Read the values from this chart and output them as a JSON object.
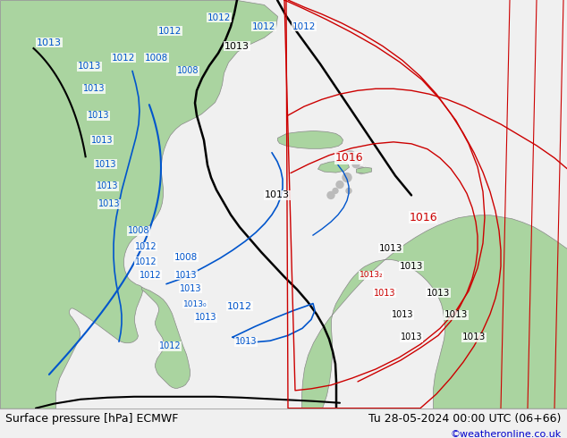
{
  "fig_width": 6.34,
  "fig_height": 4.9,
  "dpi": 100,
  "bg_color": "#f0f0f0",
  "land_color": "#aad4a0",
  "land_edge_color": "#888888",
  "ocean_color": "#f0f0f0",
  "bottom_bar_color": "#ffffff",
  "bottom_bar_height": 0.068,
  "title_left": "Surface pressure [hPa] ECMWF",
  "title_right": "Tu 28-05-2024 00:00 UTC (06+66)",
  "credit": "©weatheronline.co.uk",
  "title_fontsize": 9,
  "credit_fontsize": 8,
  "credit_color": "#0000cc",
  "title_color": "#000000",
  "black": "#000000",
  "blue": "#0055cc",
  "red": "#cc0000",
  "gray": "#999999"
}
